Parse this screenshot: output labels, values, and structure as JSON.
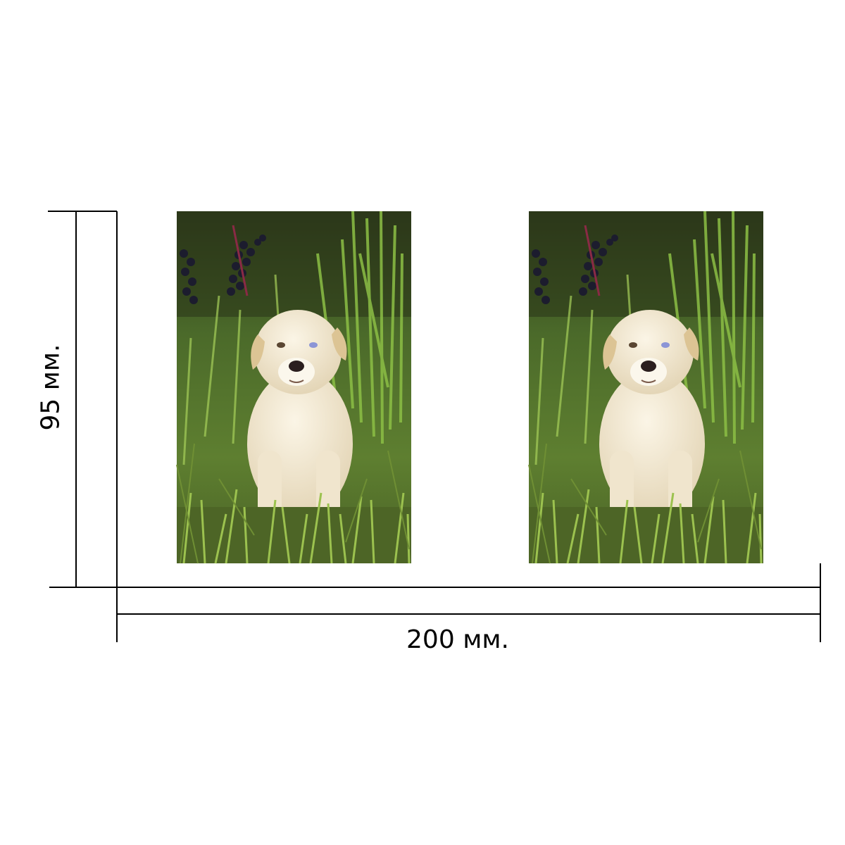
{
  "dimensions": {
    "width_label": "200 мм.",
    "height_label": "95 мм."
  },
  "photos": [
    {
      "subject": "puppy-in-grass"
    },
    {
      "subject": "puppy-in-grass"
    }
  ],
  "colors": {
    "line": "#000000",
    "grass_dark": "#3f5a22",
    "grass_light": "#7fa83a",
    "puppy": "#f1e7d2",
    "berries": "#1c1c2e"
  }
}
